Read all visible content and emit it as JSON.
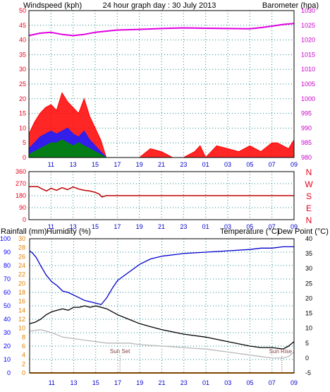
{
  "title": "24 hour graph day : 30 July 2013",
  "colors": {
    "frame": "#000000",
    "grid": "#1a8a8a",
    "wind_label": "#e8001c",
    "baro_label": "#cc00cc",
    "barometer": "#e000e0",
    "wind_gust": "#ff0000",
    "wind_avg": "#1e1eff",
    "wind_low": "#008800",
    "direction": "#c00000",
    "rain_label": "#e08000",
    "humidity_label": "#0000ff",
    "humidity": "#0000cc",
    "temperature": "#000000",
    "dewpoint": "#b8b8b8",
    "rainfall": "#ff8800",
    "dew_label": "#b0b0b0"
  },
  "header": {
    "windspeed_label": "Windspeed (kph)",
    "barometer_label": "Barometer (hpa)",
    "rainfall_label": "Rainfall (mm)",
    "humidity_label": "Humidity (%)",
    "temperature_label": "Temperature (°C)",
    "dewpoint_label": "Dew Point (°C)"
  },
  "x_ticks": [
    "11",
    "13",
    "15",
    "17",
    "19",
    "21",
    "23",
    "01",
    "03",
    "05",
    "07",
    "09"
  ],
  "markers": {
    "sunset": "Sun Set",
    "sunrise": "Sun Rise"
  },
  "chart_data": [
    {
      "id": "wind_pressure",
      "type": "line",
      "title": "24 hour graph day : 30 July 2013",
      "x_unit": "hours since 09:00",
      "xlim": [
        0,
        24
      ],
      "left_axis": {
        "label": "Windspeed (kph)",
        "ticks": [
          0,
          5,
          10,
          15,
          20,
          25,
          30,
          35,
          40,
          45,
          50
        ],
        "ylim": [
          0,
          50
        ]
      },
      "right_axis": {
        "label": "Barometer (hpa)",
        "ticks": [
          980,
          985,
          990,
          995,
          1000,
          1005,
          1010,
          1015,
          1020,
          1025,
          1030
        ],
        "ylim": [
          980,
          1030
        ]
      },
      "series": [
        {
          "name": "Barometer",
          "axis": "right",
          "x": [
            0,
            1,
            2,
            3,
            4,
            5,
            6,
            8,
            10,
            12,
            14,
            16,
            18,
            20,
            21,
            22,
            23,
            24
          ],
          "values": [
            1021.5,
            1022.3,
            1022.6,
            1021.9,
            1021.5,
            1021.9,
            1022.6,
            1023.4,
            1023.6,
            1023.9,
            1024.1,
            1024.0,
            1023.9,
            1023.8,
            1024.2,
            1024.7,
            1025.3,
            1025.6
          ]
        },
        {
          "name": "Gust",
          "axis": "left",
          "x": [
            0,
            0.5,
            1,
            1.5,
            2,
            2.5,
            3,
            3.5,
            4,
            4.5,
            5,
            5.5,
            6,
            6.5,
            7,
            7.5,
            8,
            9,
            10,
            11,
            12,
            13,
            14,
            15,
            15.5,
            16,
            16.5,
            17,
            18,
            19,
            20,
            21,
            22,
            22.5,
            23,
            23.5,
            24
          ],
          "values": [
            8,
            12,
            15,
            17,
            18,
            16,
            22,
            19,
            17,
            15,
            20,
            14,
            10,
            6,
            0,
            0,
            0,
            0,
            0,
            3,
            2,
            0,
            0,
            2,
            4,
            0,
            2,
            4,
            3,
            2,
            4,
            2,
            5,
            5,
            4,
            3,
            6
          ]
        },
        {
          "name": "Average",
          "axis": "left",
          "x": [
            0,
            0.5,
            1,
            1.5,
            2,
            2.5,
            3,
            3.5,
            4,
            4.5,
            5,
            5.5,
            6,
            6.5,
            7,
            7.5,
            8,
            24
          ],
          "values": [
            3,
            5,
            7,
            8,
            9,
            8,
            9,
            10,
            8,
            7,
            9,
            6,
            4,
            2,
            0,
            0,
            0,
            0
          ]
        },
        {
          "name": "Low",
          "axis": "left",
          "x": [
            0,
            0.5,
            1,
            1.5,
            2,
            2.5,
            3,
            3.5,
            4,
            4.5,
            5,
            5.5,
            6,
            6.5,
            7,
            7.5,
            8,
            24
          ],
          "values": [
            1,
            2,
            3,
            4,
            5,
            5,
            6,
            5,
            4,
            5,
            4,
            3,
            2,
            1,
            0,
            0,
            0,
            0
          ]
        }
      ]
    },
    {
      "id": "direction",
      "type": "line",
      "xlim": [
        0,
        24
      ],
      "left_axis": {
        "ticks": [
          0,
          90,
          180,
          270,
          360
        ],
        "ylim": [
          0,
          360
        ]
      },
      "right_axis": {
        "labels": [
          "N",
          "W",
          "S",
          "E",
          "N"
        ]
      },
      "series": [
        {
          "name": "Direction",
          "x": [
            0,
            0.8,
            1.2,
            1.6,
            2,
            2.5,
            3,
            3.5,
            4,
            4.5,
            5,
            5.5,
            6,
            6.4,
            6.6,
            7,
            8,
            10,
            14,
            18,
            22,
            24
          ],
          "values": [
            248,
            248,
            230,
            215,
            235,
            220,
            240,
            225,
            245,
            230,
            220,
            215,
            205,
            190,
            170,
            180,
            180,
            180,
            180,
            180,
            180,
            180
          ]
        }
      ]
    },
    {
      "id": "temp_hum_rain",
      "type": "line",
      "xlim": [
        0,
        24
      ],
      "rain_axis": {
        "label": "Rainfall (mm)",
        "ticks": [
          0,
          2,
          4,
          6,
          8,
          10,
          12,
          14,
          16,
          18,
          20,
          22,
          24,
          26,
          28,
          30
        ],
        "ylim": [
          0,
          30
        ]
      },
      "humidity_axis": {
        "label": "Humidity (%)",
        "ticks": [
          0,
          10,
          20,
          30,
          40,
          50,
          60,
          70,
          80,
          90,
          100
        ],
        "ylim": [
          0,
          100
        ]
      },
      "temperature_axis": {
        "label": "Temperature (°C)",
        "ticks": [
          -5,
          0,
          5,
          10,
          15,
          20,
          25,
          30,
          35,
          40
        ],
        "ylim": [
          -5,
          40
        ]
      },
      "markers": [
        {
          "label": "Sun Set",
          "x": 8.2
        },
        {
          "label": "Sun Rise",
          "x": 22.9
        }
      ],
      "series": [
        {
          "name": "Humidity",
          "axis": "humidity",
          "x": [
            0,
            0.3,
            0.6,
            1,
            1.5,
            2,
            2.5,
            3,
            3.5,
            4,
            4.5,
            5,
            5.5,
            6,
            6.5,
            7,
            7.5,
            8,
            9,
            10,
            11,
            12,
            14,
            16,
            18,
            20,
            21,
            22,
            23,
            24
          ],
          "values": [
            91,
            89,
            86,
            80,
            73,
            68,
            65,
            61,
            60,
            58,
            56,
            54,
            53,
            52,
            51,
            56,
            63,
            69,
            75,
            81,
            85,
            87,
            89,
            90,
            91,
            92,
            93,
            93,
            94,
            94
          ]
        },
        {
          "name": "Temperature",
          "axis": "temperature",
          "x": [
            0,
            0.5,
            1,
            1.5,
            2,
            2.5,
            3,
            3.5,
            4,
            4.5,
            5,
            5.5,
            6,
            6.5,
            7,
            8,
            9,
            10,
            11,
            12,
            14,
            16,
            18,
            20,
            21,
            22,
            23,
            23.5,
            24
          ],
          "values": [
            11.5,
            12,
            13,
            14.5,
            15.5,
            16,
            16.5,
            16,
            17,
            17,
            17.5,
            17,
            17.5,
            17,
            16.5,
            14.5,
            13,
            11.5,
            10.5,
            9.5,
            8,
            7,
            5.5,
            4,
            3.5,
            3.5,
            3,
            4,
            5.5
          ]
        },
        {
          "name": "Dew Point",
          "axis": "temperature",
          "x": [
            0,
            1,
            2,
            3,
            4,
            5,
            6,
            7,
            8,
            9,
            10,
            12,
            14,
            16,
            18,
            20,
            21,
            22,
            23,
            23.5,
            24
          ],
          "values": [
            9,
            9.5,
            8.5,
            7,
            6.5,
            6,
            5.5,
            5,
            5,
            5,
            4.5,
            4,
            3.5,
            3,
            2,
            1,
            0.5,
            0,
            0,
            0.5,
            2
          ]
        },
        {
          "name": "Rainfall",
          "axis": "rain",
          "x": [
            0,
            24
          ],
          "values": [
            0,
            0
          ]
        }
      ]
    }
  ]
}
